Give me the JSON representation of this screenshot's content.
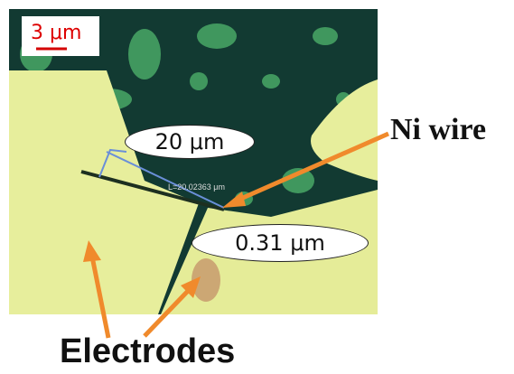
{
  "image": {
    "scale_bar_text": "3 μm",
    "ellipse_20": "20 μm",
    "ellipse_031": "0.31 μm",
    "ni_wire_label": "Ni wire",
    "electrodes_label": "Electrodes",
    "measure_readout": "L=20.02363 μm"
  },
  "colors": {
    "electrode": "#e7ee9c",
    "background": "#123a32",
    "arrow": "#f08a2c",
    "scale_bar": "#d40000",
    "measure_line": "#6a8fd8"
  }
}
